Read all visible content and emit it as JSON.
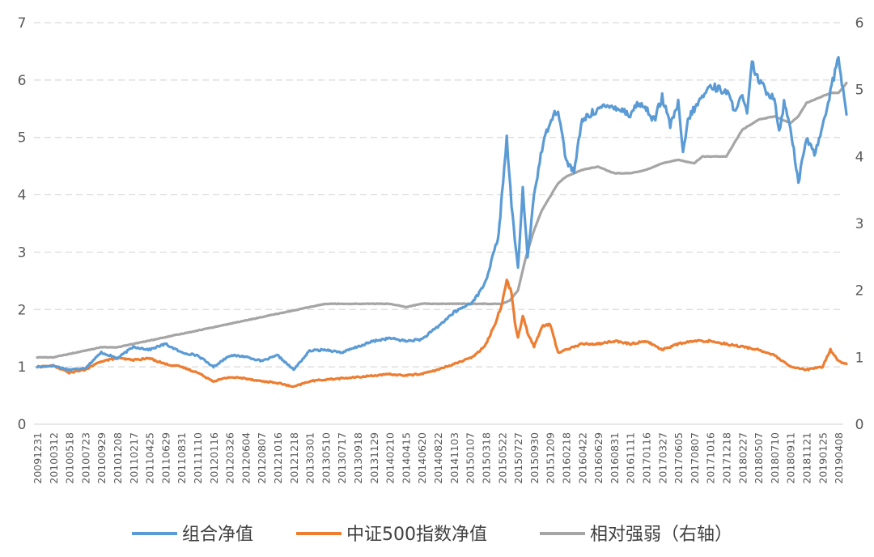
{
  "chart_data": {
    "type": "line",
    "title": "",
    "xlabel": "",
    "ylabel": "",
    "y_left": {
      "min": 0,
      "max": 7,
      "ticks": [
        "0",
        "1",
        "2",
        "3",
        "4",
        "5",
        "6",
        "7"
      ]
    },
    "y_right": {
      "min": 0,
      "max": 6,
      "ticks": [
        "0",
        "1",
        "2",
        "3",
        "4",
        "5",
        "6"
      ]
    },
    "grid": "horizontal dashed",
    "legend_position": "bottom",
    "x_tick_labels": [
      "20091231",
      "20100312",
      "20100518",
      "20100723",
      "20100929",
      "20101208",
      "20110217",
      "20110425",
      "20110629",
      "20110831",
      "20111110",
      "20120116",
      "20120326",
      "20120604",
      "20120807",
      "20121016",
      "20121218",
      "20130301",
      "20130510",
      "20130717",
      "20130918",
      "20131129",
      "20140210",
      "20140415",
      "20140620",
      "20140822",
      "20141103",
      "20150107",
      "20150318",
      "20150522",
      "20150727",
      "20150930",
      "20151209",
      "20160218",
      "20160422",
      "20160629",
      "20160831",
      "20161111",
      "20170116",
      "20170327",
      "20170605",
      "20170807",
      "20171016",
      "20171218",
      "20180227",
      "20180507",
      "20180710",
      "20180911",
      "20181121",
      "20190125",
      "20190408"
    ],
    "series": [
      {
        "name": "组合净值",
        "axis": "left",
        "color": "#5B9BD5",
        "x_index": [
          0,
          1,
          2,
          3,
          4,
          5,
          6,
          7,
          8,
          9,
          10,
          11,
          12,
          13,
          14,
          15,
          16,
          17,
          18,
          19,
          20,
          21,
          22,
          23,
          24,
          25,
          26,
          27,
          27.5,
          28,
          28.4,
          28.8,
          29,
          29.3,
          29.6,
          30,
          30.3,
          30.6,
          31,
          31.5,
          32,
          32.5,
          33,
          33.5,
          34,
          35,
          36,
          37,
          37.5,
          38,
          38.5,
          39,
          39.5,
          40,
          40.3,
          40.6,
          41,
          42,
          43,
          43.5,
          44,
          44.3,
          44.6,
          45,
          45.5,
          46,
          46.3,
          46.6,
          47,
          47.5,
          48,
          48.5,
          49,
          49.5,
          50,
          50.5
        ],
        "values": [
          1.0,
          1.02,
          0.95,
          0.98,
          1.25,
          1.15,
          1.35,
          1.3,
          1.4,
          1.25,
          1.2,
          1.0,
          1.2,
          1.18,
          1.1,
          1.2,
          0.95,
          1.28,
          1.3,
          1.25,
          1.35,
          1.45,
          1.5,
          1.45,
          1.48,
          1.7,
          1.95,
          2.1,
          2.25,
          2.5,
          2.9,
          3.3,
          4.0,
          5.0,
          3.8,
          2.7,
          4.1,
          2.9,
          4.0,
          4.8,
          5.3,
          5.5,
          4.6,
          4.4,
          5.3,
          5.5,
          5.55,
          5.4,
          5.6,
          5.5,
          5.3,
          5.7,
          5.2,
          5.6,
          4.7,
          5.3,
          5.5,
          5.9,
          5.8,
          5.5,
          5.7,
          5.4,
          6.3,
          6.0,
          5.8,
          5.7,
          5.1,
          5.6,
          5.2,
          4.2,
          5.0,
          4.7,
          5.2,
          5.8,
          6.4,
          5.4
        ]
      },
      {
        "name": "中证500指数净值",
        "axis": "left",
        "color": "#ED7D31",
        "x_index": [
          0,
          1,
          2,
          3,
          4,
          5,
          6,
          7,
          8,
          9,
          10,
          11,
          12,
          13,
          14,
          15,
          16,
          17,
          18,
          19,
          20,
          21,
          22,
          23,
          24,
          25,
          26,
          27,
          27.5,
          28,
          28.5,
          29,
          29.3,
          29.6,
          29.8,
          30,
          30.3,
          30.6,
          31,
          31.5,
          32,
          32.5,
          33,
          33.5,
          34,
          35,
          36,
          37,
          38,
          39,
          40,
          41,
          42,
          43,
          44,
          45,
          46,
          47,
          48,
          49,
          49.5,
          50,
          50.5
        ],
        "values": [
          1.0,
          1.02,
          0.9,
          0.95,
          1.1,
          1.15,
          1.12,
          1.15,
          1.05,
          1.0,
          0.9,
          0.75,
          0.82,
          0.8,
          0.75,
          0.72,
          0.65,
          0.75,
          0.78,
          0.8,
          0.82,
          0.85,
          0.87,
          0.85,
          0.88,
          0.95,
          1.05,
          1.15,
          1.25,
          1.4,
          1.7,
          2.1,
          2.5,
          2.3,
          1.8,
          1.5,
          1.9,
          1.6,
          1.35,
          1.7,
          1.75,
          1.25,
          1.3,
          1.35,
          1.4,
          1.4,
          1.45,
          1.4,
          1.45,
          1.3,
          1.4,
          1.45,
          1.45,
          1.4,
          1.35,
          1.3,
          1.2,
          1.0,
          0.95,
          1.0,
          1.3,
          1.1,
          1.05
        ]
      },
      {
        "name": "相对强弱（右轴）",
        "axis": "right",
        "color": "#A5A5A5",
        "x_index": [
          0,
          1,
          2,
          3,
          4,
          5,
          6,
          7,
          8,
          9,
          10,
          11,
          12,
          13,
          14,
          15,
          16,
          17,
          18,
          19,
          20,
          21,
          22,
          23,
          24,
          25,
          26,
          27,
          28,
          29,
          29.5,
          30,
          30.5,
          31,
          31.5,
          32,
          32.5,
          33,
          34,
          35,
          36,
          37,
          38,
          39,
          40,
          41,
          41.5,
          42,
          43,
          44,
          45,
          46,
          47,
          47.5,
          48,
          49,
          49.5,
          50,
          50.5
        ],
        "values": [
          1.0,
          1.0,
          1.05,
          1.1,
          1.15,
          1.15,
          1.2,
          1.25,
          1.3,
          1.35,
          1.4,
          1.45,
          1.5,
          1.55,
          1.6,
          1.65,
          1.7,
          1.75,
          1.8,
          1.8,
          1.8,
          1.8,
          1.8,
          1.75,
          1.8,
          1.8,
          1.8,
          1.8,
          1.8,
          1.8,
          1.85,
          2.0,
          2.5,
          2.9,
          3.2,
          3.4,
          3.6,
          3.7,
          3.8,
          3.85,
          3.75,
          3.75,
          3.8,
          3.9,
          3.95,
          3.9,
          4.0,
          4.0,
          4.0,
          4.4,
          4.55,
          4.6,
          4.5,
          4.6,
          4.8,
          4.9,
          4.95,
          4.95,
          5.1
        ]
      }
    ]
  }
}
